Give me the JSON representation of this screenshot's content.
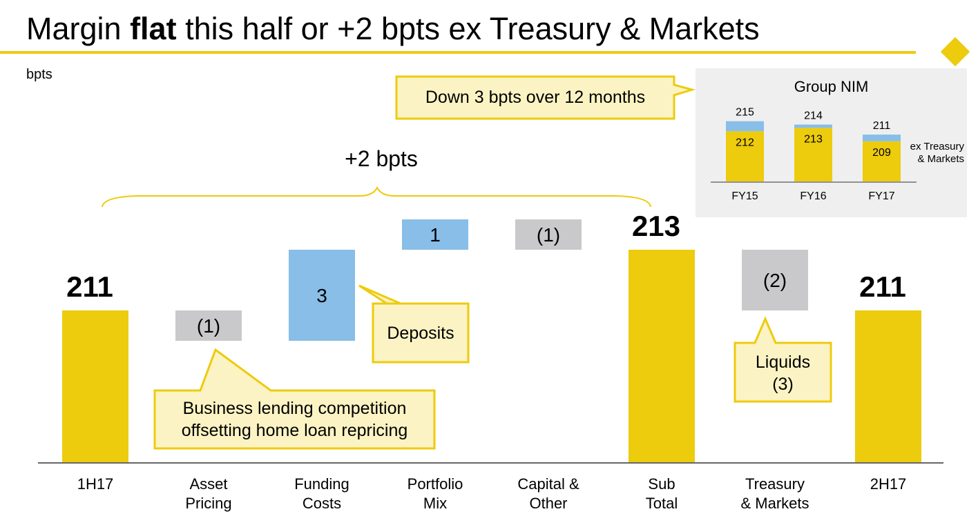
{
  "slide": {
    "title_before": "Margin ",
    "title_bold": "flat",
    "title_after": " this half or +2 bpts ex Treasury & Markets",
    "units": "bpts"
  },
  "colors": {
    "accent_yellow": "#EDCB0D",
    "callout_fill": "#FBF3C3",
    "positive_blue": "#88BEE8",
    "negative_gray": "#C9C9CB",
    "axis": "#333333"
  },
  "callouts": {
    "down": "Down 3 bpts over 12 months",
    "bracket": "+2 bpts",
    "deposits": "Deposits",
    "business": [
      "Business lending competition",
      "offsetting home loan repricing"
    ],
    "liquids": [
      "Liquids",
      "(3)"
    ]
  },
  "chart_data": [
    {
      "type": "bar",
      "subtype": "waterfall",
      "categories": [
        [
          "1H17"
        ],
        [
          "Asset",
          "Pricing"
        ],
        [
          "Funding",
          "Costs"
        ],
        [
          "Portfolio",
          "Mix"
        ],
        [
          "Capital &",
          "Other"
        ],
        [
          "Sub",
          "Total"
        ],
        [
          "Treasury",
          "& Markets"
        ],
        [
          "2H17"
        ]
      ],
      "values": [
        211,
        -1,
        3,
        1,
        -1,
        213,
        -2,
        211
      ],
      "kinds": [
        "total",
        "delta",
        "delta",
        "delta",
        "delta",
        "total",
        "delta",
        "total"
      ],
      "labels": [
        "211",
        "(1)",
        "3",
        "1",
        "(1)",
        "213",
        "(2)",
        "211"
      ],
      "ylabel": "bpts"
    },
    {
      "type": "bar",
      "subtype": "stacked",
      "title": "Group NIM",
      "categories": [
        "FY15",
        "FY16",
        "FY17"
      ],
      "totals": [
        215,
        214,
        211
      ],
      "ex_values": [
        212,
        213,
        209
      ],
      "total_labels": [
        "215",
        "214",
        "211"
      ],
      "ex_labels": [
        "212",
        "213",
        "209"
      ],
      "series_label": [
        "ex Treasury",
        "& Markets"
      ]
    }
  ]
}
